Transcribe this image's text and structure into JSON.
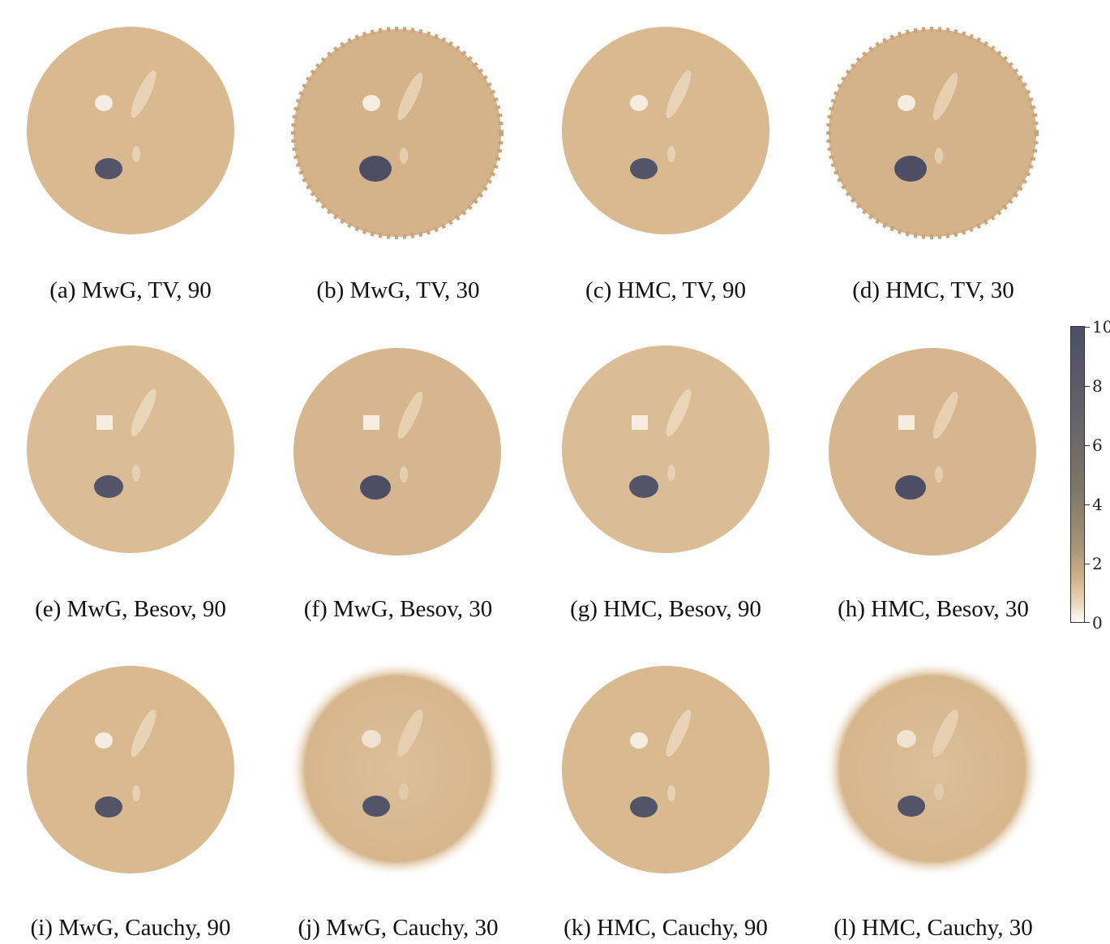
{
  "figure": {
    "panels": [
      {
        "caption": "(a) MwG, TV, 90"
      },
      {
        "caption": "(b) MwG, TV, 30"
      },
      {
        "caption": "(c) HMC, TV, 90"
      },
      {
        "caption": "(d) HMC, TV, 30"
      },
      {
        "caption": "(e) MwG, Besov, 90"
      },
      {
        "caption": "(f) MwG, Besov, 30"
      },
      {
        "caption": "(g) HMC, Besov, 90"
      },
      {
        "caption": "(h) HMC, Besov, 30"
      },
      {
        "caption": "(i) MwG, Cauchy, 90"
      },
      {
        "caption": "(j) MwG, Cauchy, 30"
      },
      {
        "caption": "(k) HMC, Cauchy, 90"
      },
      {
        "caption": "(l) HMC, Cauchy, 30"
      }
    ],
    "colorbar": {
      "ticks": [
        "10",
        "8",
        "6",
        "4",
        "2",
        "0"
      ],
      "colors": {
        "low": "#ffffff",
        "mid": "#d4b490",
        "high": "#4e4e66"
      }
    }
  }
}
